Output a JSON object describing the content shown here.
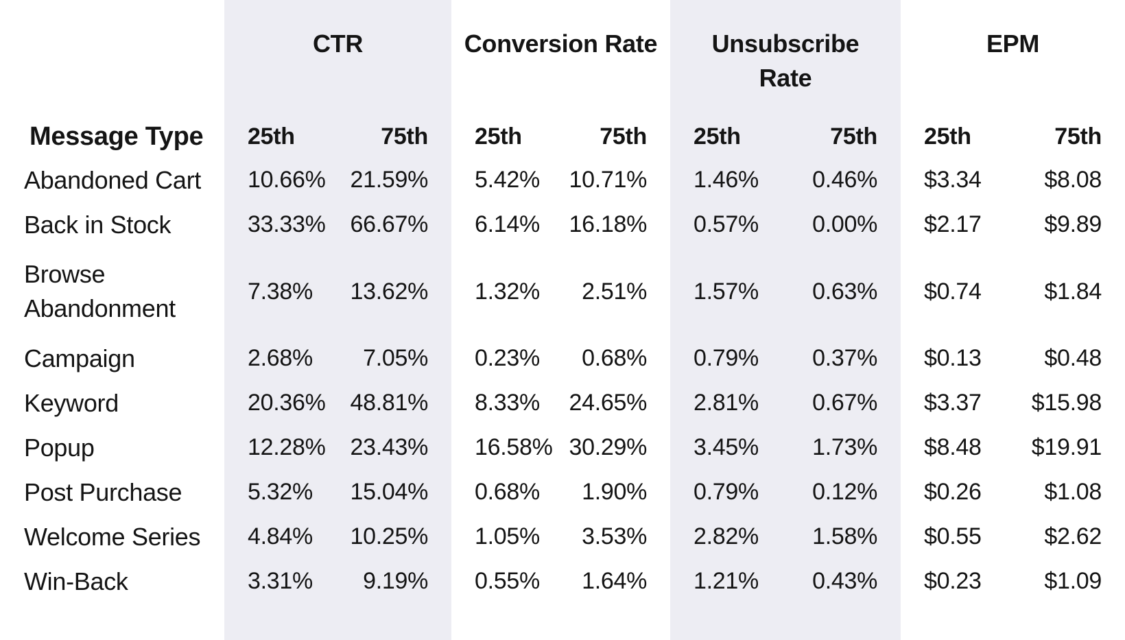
{
  "colors": {
    "background": "#ffffff",
    "column_band": "#ededf3",
    "text": "#141414"
  },
  "chart_data": {
    "type": "table",
    "row_header": "Message Type",
    "column_groups": [
      {
        "label": "CTR",
        "shaded": true,
        "sub_columns": [
          "25th",
          "75th"
        ]
      },
      {
        "label": "Conversion Rate",
        "shaded": false,
        "sub_columns": [
          "25th",
          "75th"
        ]
      },
      {
        "label": "Unsubscribe Rate",
        "shaded": true,
        "sub_columns": [
          "25th",
          "75th"
        ]
      },
      {
        "label": "EPM",
        "shaded": false,
        "sub_columns": [
          "25th",
          "75th"
        ]
      }
    ],
    "rows": [
      {
        "message_type": "Abandoned Cart",
        "values": [
          "10.66%",
          "21.59%",
          "5.42%",
          "10.71%",
          "1.46%",
          "0.46%",
          "$3.34",
          "$8.08"
        ]
      },
      {
        "message_type": "Back in Stock",
        "values": [
          "33.33%",
          "66.67%",
          "6.14%",
          "16.18%",
          "0.57%",
          "0.00%",
          "$2.17",
          "$9.89"
        ]
      },
      {
        "message_type": "Browse Abandonment",
        "values": [
          "7.38%",
          "13.62%",
          "1.32%",
          "2.51%",
          "1.57%",
          "0.63%",
          "$0.74",
          "$1.84"
        ]
      },
      {
        "message_type": "Campaign",
        "values": [
          "2.68%",
          "7.05%",
          "0.23%",
          "0.68%",
          "0.79%",
          "0.37%",
          "$0.13",
          "$0.48"
        ]
      },
      {
        "message_type": "Keyword",
        "values": [
          "20.36%",
          "48.81%",
          "8.33%",
          "24.65%",
          "2.81%",
          "0.67%",
          "$3.37",
          "$15.98"
        ]
      },
      {
        "message_type": "Popup",
        "values": [
          "12.28%",
          "23.43%",
          "16.58%",
          "30.29%",
          "3.45%",
          "1.73%",
          "$8.48",
          "$19.91"
        ]
      },
      {
        "message_type": "Post Purchase",
        "values": [
          "5.32%",
          "15.04%",
          "0.68%",
          "1.90%",
          "0.79%",
          "0.12%",
          "$0.26",
          "$1.08"
        ]
      },
      {
        "message_type": "Welcome Series",
        "values": [
          "4.84%",
          "10.25%",
          "1.05%",
          "3.53%",
          "2.82%",
          "1.58%",
          "$0.55",
          "$2.62"
        ]
      },
      {
        "message_type": "Win-Back",
        "values": [
          "3.31%",
          "9.19%",
          "0.55%",
          "1.64%",
          "1.21%",
          "0.43%",
          "$0.23",
          "$1.09"
        ]
      }
    ]
  }
}
